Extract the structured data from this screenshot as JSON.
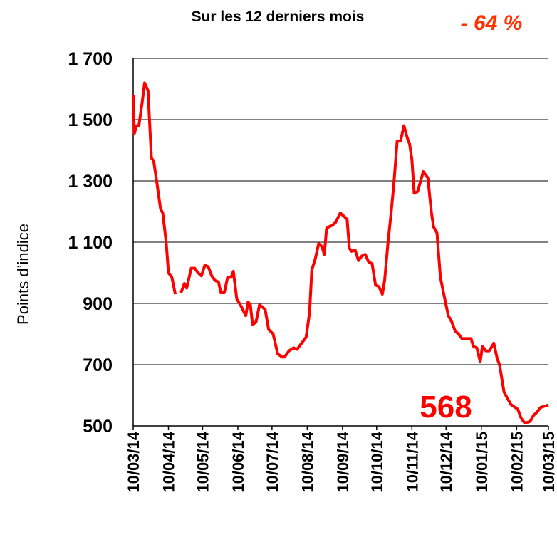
{
  "chart_data": {
    "type": "line",
    "title": "Sur les 12 derniers mois",
    "y_label": "Points d’indice",
    "annotations": [
      {
        "text": "- 64 %"
      },
      {
        "text": "568"
      }
    ],
    "ylim": [
      500,
      1700
    ],
    "yticks": [
      500,
      700,
      900,
      {
        "value": 1100,
        "label": "1 100"
      },
      {
        "value": 1300,
        "label": "1 300"
      },
      {
        "value": 1500,
        "label": "1 500"
      },
      {
        "value": 1700,
        "label": "1 700"
      }
    ],
    "xlim": [
      "2014-03-10",
      "2015-03-10"
    ],
    "xticks": [
      {
        "value": "2014-03-10",
        "label": "10/03/14"
      },
      {
        "value": "2014-04-10",
        "label": "10/04/14"
      },
      {
        "value": "2014-05-10",
        "label": "10/05/14"
      },
      {
        "value": "2014-06-10",
        "label": "10/06/14"
      },
      {
        "value": "2014-07-10",
        "label": "10/07/14"
      },
      {
        "value": "2014-08-10",
        "label": "10/08/14"
      },
      {
        "value": "2014-09-10",
        "label": "10/09/14"
      },
      {
        "value": "2014-10-10",
        "label": "10/10/14"
      },
      {
        "value": "2014-11-10",
        "label": "10/11/14"
      },
      {
        "value": "2014-12-10",
        "label": "10/12/14"
      },
      {
        "value": "2015-01-10",
        "label": "10/01/15"
      },
      {
        "value": "2015-02-10",
        "label": "10/02/15"
      },
      {
        "value": "2015-03-10",
        "label": "10/03/15"
      }
    ],
    "grid": true,
    "x": [
      "2014-03-10",
      "2014-03-11",
      "2014-03-13",
      "2014-03-15",
      "2014-03-18",
      "2014-03-20",
      "2014-03-23",
      "2014-03-26",
      "2014-03-28",
      "2014-03-31",
      "2014-04-03",
      "2014-04-05",
      "2014-04-08",
      "2014-04-10",
      "2014-04-13",
      "2014-04-16",
      "2014-04-19",
      "2014-04-21",
      "2014-04-24",
      "2014-04-26",
      "2014-04-30",
      "2014-05-03",
      "2014-05-06",
      "2014-05-09",
      "2014-05-12",
      "2014-05-15",
      "2014-05-18",
      "2014-05-21",
      "2014-05-24",
      "2014-05-26",
      "2014-05-29",
      "2014-06-01",
      "2014-06-04",
      "2014-06-06",
      "2014-06-09",
      "2014-06-13",
      "2014-06-17",
      "2014-06-19",
      "2014-06-21",
      "2014-06-23",
      "2014-06-26",
      "2014-06-29",
      "2014-07-01",
      "2014-07-04",
      "2014-07-07",
      "2014-07-11",
      "2014-07-15",
      "2014-07-19",
      "2014-07-21",
      "2014-07-25",
      "2014-07-29",
      "2014-08-01",
      "2014-08-05",
      "2014-08-09",
      "2014-08-12",
      "2014-08-14",
      "2014-08-17",
      "2014-08-20",
      "2014-08-23",
      "2014-08-25",
      "2014-08-27",
      "2014-08-29",
      "2014-09-01",
      "2014-09-04",
      "2014-09-08",
      "2014-09-11",
      "2014-09-14",
      "2014-09-16",
      "2014-09-18",
      "2014-09-21",
      "2014-09-24",
      "2014-09-27",
      "2014-09-30",
      "2014-10-03",
      "2014-10-06",
      "2014-10-09",
      "2014-10-12",
      "2014-10-15",
      "2014-10-17",
      "2014-10-20",
      "2014-10-22",
      "2014-10-25",
      "2014-10-28",
      "2014-10-31",
      "2014-11-03",
      "2014-11-06",
      "2014-11-08",
      "2014-11-10",
      "2014-11-12",
      "2014-11-15",
      "2014-11-20",
      "2014-11-24",
      "2014-11-27",
      "2014-11-29",
      "2014-12-02",
      "2014-12-05",
      "2014-12-08",
      "2014-12-12",
      "2014-12-15",
      "2014-12-18",
      "2014-12-21",
      "2014-12-24",
      "2014-12-28",
      "2015-01-01",
      "2015-01-03",
      "2015-01-06",
      "2015-01-09",
      "2015-01-11",
      "2015-01-14",
      "2015-01-17",
      "2015-01-21",
      "2015-01-24",
      "2015-01-26",
      "2015-01-30",
      "2015-02-02",
      "2015-02-05",
      "2015-02-08",
      "2015-02-11",
      "2015-02-14",
      "2015-02-17",
      "2015-02-20",
      "2015-02-22",
      "2015-02-25",
      "2015-02-28",
      "2015-03-03",
      "2015-03-07",
      "2015-03-10"
    ],
    "series": [
      {
        "name": "Points d’indice",
        "color": "#ff0000",
        "values": [
          1580,
          1455,
          1480,
          1480,
          1560,
          1620,
          1595,
          1375,
          1365,
          1290,
          1210,
          1195,
          1100,
          1000,
          985,
          930,
          null,
          935,
          965,
          950,
          1015,
          1015,
          1000,
          990,
          1025,
          1020,
          990,
          975,
          970,
          935,
          935,
          985,
          985,
          1005,
          915,
          890,
          860,
          905,
          895,
          830,
          840,
          895,
          890,
          880,
          815,
          800,
          735,
          725,
          725,
          745,
          755,
          750,
          770,
          790,
          870,
          1010,
          1045,
          1095,
          1085,
          1060,
          1145,
          1150,
          1155,
          1165,
          1195,
          1185,
          1175,
          1080,
          1070,
          1075,
          1040,
          1055,
          1060,
          1035,
          1030,
          960,
          955,
          930,
          975,
          1100,
          1170,
          1285,
          1430,
          1430,
          1480,
          1440,
          1420,
          1370,
          1260,
          1265,
          1330,
          1310,
          1200,
          1150,
          1130,
          985,
          930,
          860,
          840,
          810,
          800,
          785,
          785,
          785,
          760,
          755,
          710,
          760,
          745,
          745,
          770,
          720,
          700,
          610,
          590,
          570,
          562,
          555,
          525,
          510,
          512,
          515,
          535,
          545,
          560,
          565,
          568
        ]
      }
    ]
  }
}
